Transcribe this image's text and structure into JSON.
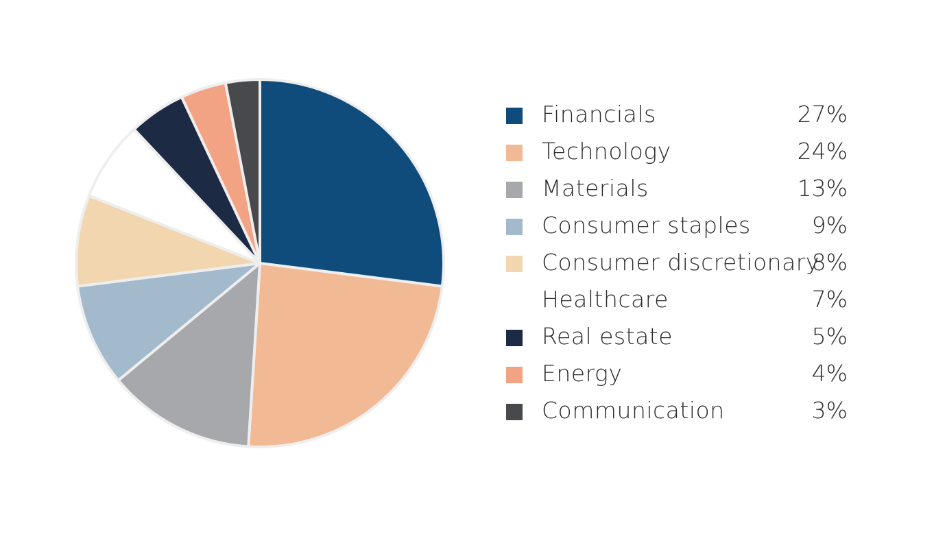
{
  "chart_data": {
    "type": "pie",
    "slices": [
      {
        "label": "Financials",
        "value": 27,
        "value_label": "27%",
        "color": "#0F4C7C"
      },
      {
        "label": "Technology",
        "value": 24,
        "value_label": "24%",
        "color": "#F1B994"
      },
      {
        "label": "Materials",
        "value": 13,
        "value_label": "13%",
        "color": "#A7A8AC"
      },
      {
        "label": "Consumer staples",
        "value": 9,
        "value_label": "9%",
        "color": "#A3B9CC"
      },
      {
        "label": "Consumer discretionary",
        "value": 8,
        "value_label": "8%",
        "color": "#F2D6AF"
      },
      {
        "label": "Healthcare",
        "value": 7,
        "value_label": "7%",
        "color": "#FFFFFF"
      },
      {
        "label": "Real estate",
        "value": 5,
        "value_label": "5%",
        "color": "#1C2A44"
      },
      {
        "label": "Energy",
        "value": 4,
        "value_label": "4%",
        "color": "#F2A384"
      },
      {
        "label": "Communication",
        "value": 3,
        "value_label": "3%",
        "color": "#48494C"
      }
    ],
    "legend_position": "right",
    "slice_border_color": "#EEEEEE",
    "start_angle": "12 o'clock",
    "direction": "clockwise"
  }
}
